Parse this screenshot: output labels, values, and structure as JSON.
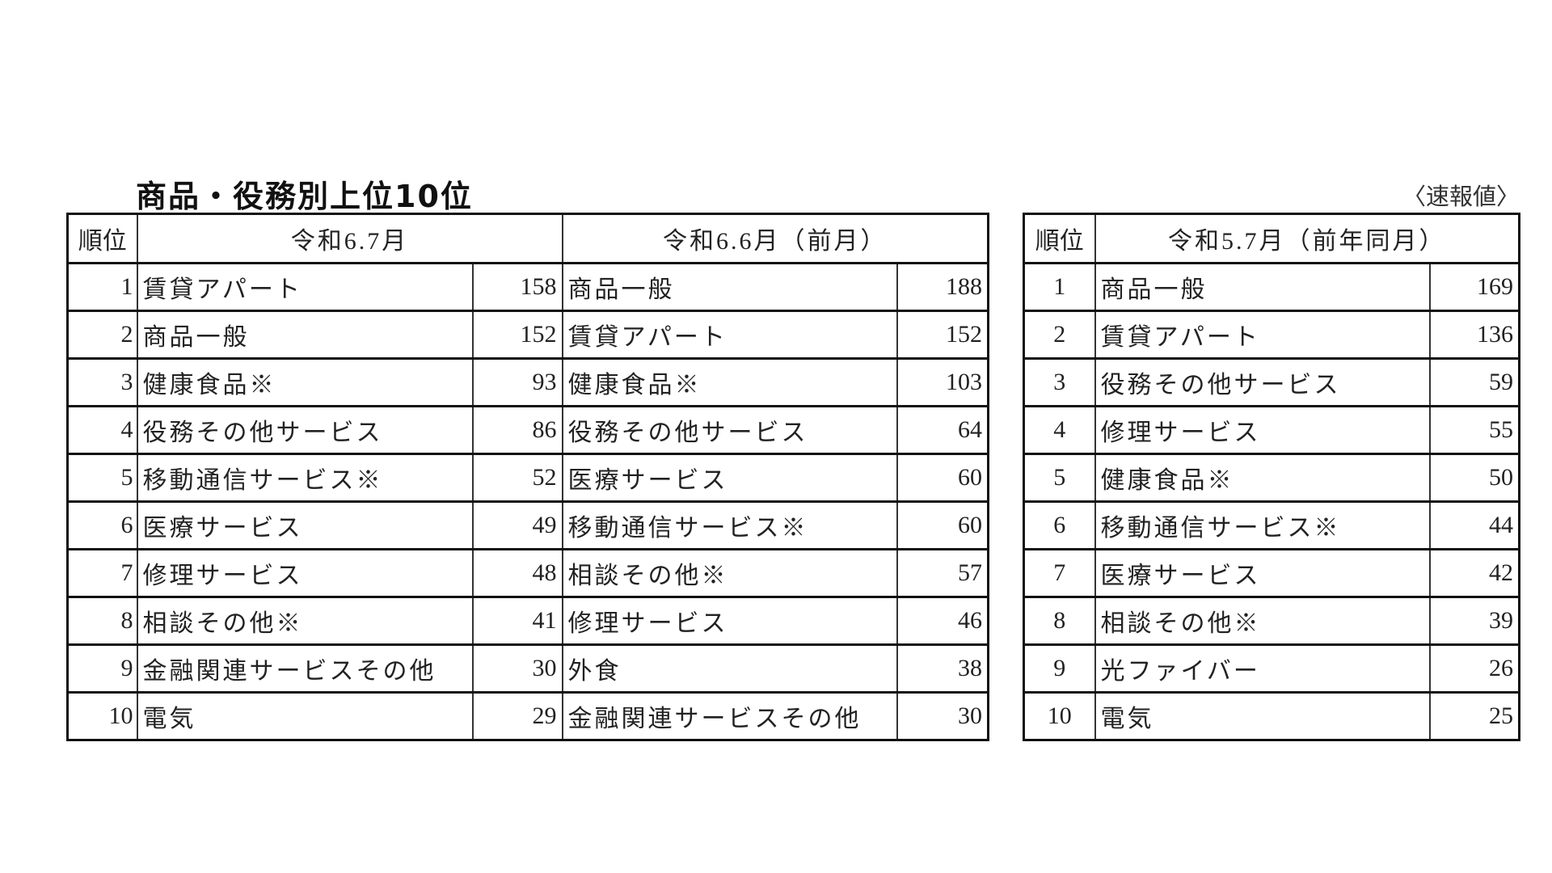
{
  "title": "商品・役務別上位10位",
  "note": "〈速報値〉",
  "rank_header": "順位",
  "periods": {
    "current": "令和6.7月",
    "previous_month": "令和6.6月（前月）",
    "previous_year": "令和5.7月（前年同月）"
  },
  "rows": [
    {
      "rank": "1",
      "current": {
        "item": "賃貸アパート",
        "count": "158"
      },
      "previous_month": {
        "item": "商品一般",
        "count": "188"
      },
      "previous_year": {
        "item": "商品一般",
        "count": "169"
      }
    },
    {
      "rank": "2",
      "current": {
        "item": "商品一般",
        "count": "152"
      },
      "previous_month": {
        "item": "賃貸アパート",
        "count": "152"
      },
      "previous_year": {
        "item": "賃貸アパート",
        "count": "136"
      }
    },
    {
      "rank": "3",
      "current": {
        "item": "健康食品※",
        "count": "93"
      },
      "previous_month": {
        "item": "健康食品※",
        "count": "103"
      },
      "previous_year": {
        "item": "役務その他サービス",
        "count": "59"
      }
    },
    {
      "rank": "4",
      "current": {
        "item": "役務その他サービス",
        "count": "86"
      },
      "previous_month": {
        "item": "役務その他サービス",
        "count": "64"
      },
      "previous_year": {
        "item": "修理サービス",
        "count": "55"
      }
    },
    {
      "rank": "5",
      "current": {
        "item": "移動通信サービス※",
        "count": "52"
      },
      "previous_month": {
        "item": "医療サービス",
        "count": "60"
      },
      "previous_year": {
        "item": "健康食品※",
        "count": "50"
      }
    },
    {
      "rank": "6",
      "current": {
        "item": "医療サービス",
        "count": "49"
      },
      "previous_month": {
        "item": "移動通信サービス※",
        "count": "60"
      },
      "previous_year": {
        "item": "移動通信サービス※",
        "count": "44"
      }
    },
    {
      "rank": "7",
      "current": {
        "item": "修理サービス",
        "count": "48"
      },
      "previous_month": {
        "item": "相談その他※",
        "count": "57"
      },
      "previous_year": {
        "item": "医療サービス",
        "count": "42"
      }
    },
    {
      "rank": "8",
      "current": {
        "item": "相談その他※",
        "count": "41"
      },
      "previous_month": {
        "item": "修理サービス",
        "count": "46"
      },
      "previous_year": {
        "item": "相談その他※",
        "count": "39"
      }
    },
    {
      "rank": "9",
      "current": {
        "item": "金融関連サービスその他",
        "count": "30"
      },
      "previous_month": {
        "item": "外食",
        "count": "38"
      },
      "previous_year": {
        "item": "光ファイバー",
        "count": "26"
      }
    },
    {
      "rank": "10",
      "current": {
        "item": "電気",
        "count": "29"
      },
      "previous_month": {
        "item": "金融関連サービスその他",
        "count": "30"
      },
      "previous_year": {
        "item": "電気",
        "count": "25"
      }
    }
  ]
}
